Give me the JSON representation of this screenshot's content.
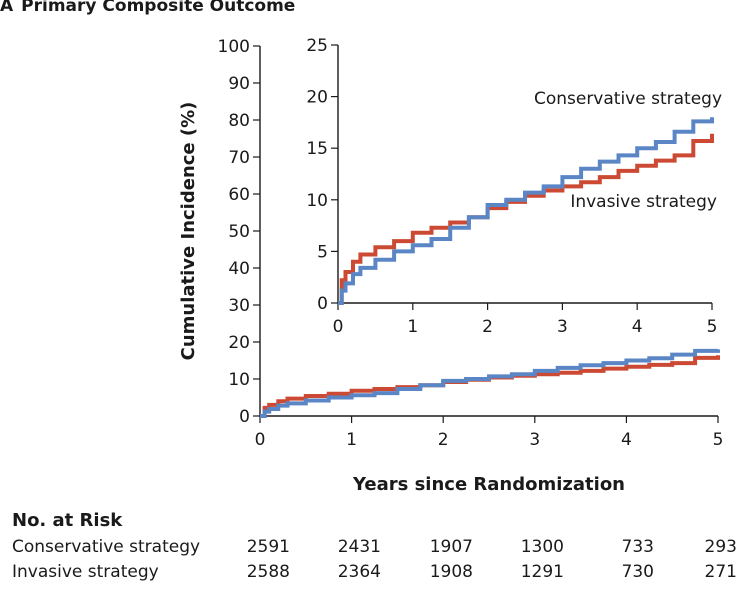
{
  "panel": {
    "letter": "A",
    "title": "Primary Composite Outcome"
  },
  "chart_data": [
    {
      "name": "main",
      "type": "line",
      "title": "Primary Composite Outcome",
      "xlabel": "Years since Randomization",
      "ylabel": "Cumulative Incidence (%)",
      "xlim": [
        0,
        5
      ],
      "ylim": [
        0,
        100
      ],
      "xticks": [
        "0",
        "1",
        "2",
        "3",
        "4",
        "5"
      ],
      "yticks": [
        "0",
        "10",
        "20",
        "30",
        "40",
        "50",
        "60",
        "70",
        "80",
        "90",
        "100"
      ],
      "grid": false,
      "series": [
        {
          "name": "Conservative strategy",
          "color": "#5b86c5",
          "x": [
            0,
            0.05,
            0.1,
            0.2,
            0.3,
            0.5,
            0.75,
            1.0,
            1.25,
            1.5,
            1.75,
            2.0,
            2.25,
            2.5,
            2.75,
            3.0,
            3.25,
            3.5,
            3.75,
            4.0,
            4.25,
            4.5,
            4.75,
            5.0
          ],
          "y": [
            0,
            1.2,
            1.9,
            2.8,
            3.4,
            4.2,
            5.0,
            5.6,
            6.2,
            7.3,
            8.3,
            9.5,
            10.0,
            10.7,
            11.3,
            12.2,
            13.0,
            13.7,
            14.3,
            15.0,
            15.6,
            16.6,
            17.6,
            18.0
          ]
        },
        {
          "name": "Invasive strategy",
          "color": "#cc4a33",
          "x": [
            0,
            0.05,
            0.1,
            0.2,
            0.3,
            0.5,
            0.75,
            1.0,
            1.25,
            1.5,
            1.75,
            2.0,
            2.25,
            2.5,
            2.75,
            3.0,
            3.25,
            3.5,
            3.75,
            4.0,
            4.25,
            4.5,
            4.75,
            5.0
          ],
          "y": [
            0,
            2.2,
            3.0,
            4.0,
            4.7,
            5.4,
            6.0,
            6.8,
            7.3,
            7.8,
            8.3,
            9.2,
            9.8,
            10.4,
            10.9,
            11.3,
            11.7,
            12.2,
            12.8,
            13.3,
            13.8,
            14.3,
            15.7,
            16.4
          ]
        }
      ]
    },
    {
      "name": "inset",
      "type": "line",
      "xlim": [
        0,
        5
      ],
      "ylim": [
        0,
        25
      ],
      "xticks": [
        "0",
        "1",
        "2",
        "3",
        "4",
        "5"
      ],
      "yticks": [
        "0",
        "5",
        "10",
        "15",
        "20",
        "25"
      ],
      "grid": false,
      "series": [
        {
          "name": "Conservative strategy",
          "label": "Conservative strategy",
          "color": "#5b86c5",
          "x": [
            0,
            0.05,
            0.1,
            0.2,
            0.3,
            0.5,
            0.75,
            1.0,
            1.25,
            1.5,
            1.75,
            2.0,
            2.25,
            2.5,
            2.75,
            3.0,
            3.25,
            3.5,
            3.75,
            4.0,
            4.25,
            4.5,
            4.75,
            5.0
          ],
          "y": [
            0,
            1.2,
            1.9,
            2.8,
            3.4,
            4.2,
            5.0,
            5.6,
            6.2,
            7.3,
            8.3,
            9.5,
            10.0,
            10.7,
            11.3,
            12.2,
            13.0,
            13.7,
            14.3,
            15.0,
            15.6,
            16.6,
            17.6,
            18.0
          ]
        },
        {
          "name": "Invasive strategy",
          "label": "Invasive strategy",
          "color": "#cc4a33",
          "x": [
            0,
            0.05,
            0.1,
            0.2,
            0.3,
            0.5,
            0.75,
            1.0,
            1.25,
            1.5,
            1.75,
            2.0,
            2.25,
            2.5,
            2.75,
            3.0,
            3.25,
            3.5,
            3.75,
            4.0,
            4.25,
            4.5,
            4.75,
            5.0
          ],
          "y": [
            0,
            2.2,
            3.0,
            4.0,
            4.7,
            5.4,
            6.0,
            6.8,
            7.3,
            7.8,
            8.3,
            9.2,
            9.8,
            10.4,
            10.9,
            11.3,
            11.7,
            12.2,
            12.8,
            13.3,
            13.8,
            14.3,
            15.7,
            16.4
          ]
        }
      ]
    }
  ],
  "risk_table": {
    "heading": "No. at Risk",
    "rows": [
      {
        "label": "Conservative strategy",
        "values": [
          "2591",
          "2431",
          "1907",
          "1300",
          "733",
          "293"
        ]
      },
      {
        "label": "Invasive strategy",
        "values": [
          "2588",
          "2364",
          "1908",
          "1291",
          "730",
          "271"
        ]
      }
    ]
  }
}
